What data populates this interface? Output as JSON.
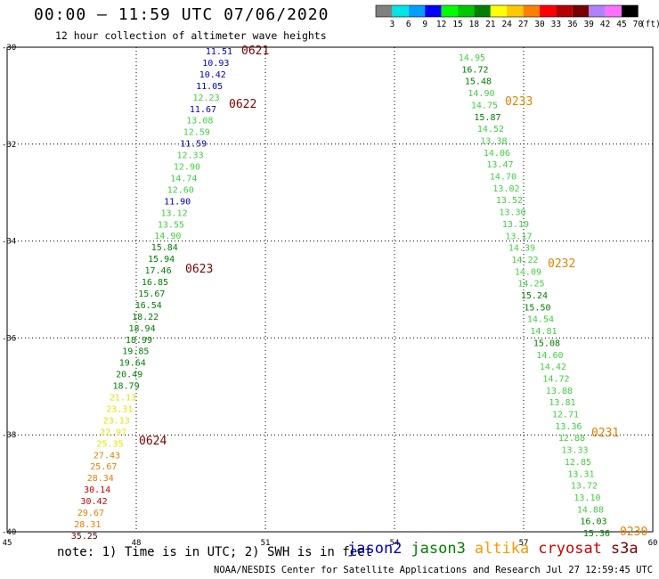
{
  "header": {
    "title": "00:00 – 11:59 UTC 07/06/2020",
    "subtitle": "12 hour collection of altimeter wave heights"
  },
  "colorbar": {
    "labels": [
      "3",
      "6",
      "9",
      "12",
      "15",
      "18",
      "21",
      "24",
      "27",
      "30",
      "33",
      "36",
      "39",
      "42",
      "45",
      "70",
      "(ft)"
    ],
    "colors": [
      "#808080",
      "#00e5e5",
      "#00a0ff",
      "#0000ff",
      "#00ff00",
      "#00c800",
      "#008000",
      "#ffff00",
      "#ffc800",
      "#ff8000",
      "#ff0000",
      "#b40000",
      "#780000",
      "#b080ff",
      "#ff70ff",
      "#000000"
    ]
  },
  "chart_data": {
    "type": "scatter",
    "xlim": [
      45,
      60
    ],
    "ylim": [
      -40,
      -30
    ],
    "x_ticks": [
      "45",
      "48",
      "51",
      "54",
      "57",
      "60"
    ],
    "y_ticks": [
      "-30",
      "-32",
      "-34",
      "-36",
      "-38",
      "-40"
    ],
    "tracks": [
      {
        "name": "left-track",
        "points": [
          [
            "11.51",
            "#0000c8"
          ],
          [
            "10.93",
            "#0000c8"
          ],
          [
            "10.42",
            "#0000c8"
          ],
          [
            "11.05",
            "#0000c8"
          ],
          [
            "12.23",
            "#40d040"
          ],
          [
            "11.67",
            "#0000c8"
          ],
          [
            "13.08",
            "#40d040"
          ],
          [
            "12.59",
            "#40d040"
          ],
          [
            "11.59",
            "#0000c8"
          ],
          [
            "12.33",
            "#40d040"
          ],
          [
            "12.90",
            "#40d040"
          ],
          [
            "14.74",
            "#40d040"
          ],
          [
            "12.60",
            "#40d040"
          ],
          [
            "11.90",
            "#0000c8"
          ],
          [
            "13.12",
            "#40d040"
          ],
          [
            "13.55",
            "#40d040"
          ],
          [
            "14.90",
            "#40d040"
          ],
          [
            "15.84",
            "#008000"
          ],
          [
            "15.94",
            "#008000"
          ],
          [
            "17.46",
            "#008000"
          ],
          [
            "16.85",
            "#008000"
          ],
          [
            "15.67",
            "#008000"
          ],
          [
            "16.54",
            "#008000"
          ],
          [
            "18.22",
            "#008000"
          ],
          [
            "18.94",
            "#008000"
          ],
          [
            "18.99",
            "#008000"
          ],
          [
            "19.85",
            "#008000"
          ],
          [
            "19.64",
            "#008000"
          ],
          [
            "20.49",
            "#008000"
          ],
          [
            "18.79",
            "#008000"
          ],
          [
            "21.13",
            "#e6e600"
          ],
          [
            "23.31",
            "#e6e600"
          ],
          [
            "23.13",
            "#e6e600"
          ],
          [
            "22.97",
            "#e6e600"
          ],
          [
            "25.35",
            "#e6e600"
          ],
          [
            "27.43",
            "#e68000"
          ],
          [
            "25.67",
            "#e68000"
          ],
          [
            "28.34",
            "#e68000"
          ],
          [
            "30.14",
            "#c80000"
          ],
          [
            "30.42",
            "#c80000"
          ],
          [
            "29.67",
            "#e68000"
          ],
          [
            "28.31",
            "#e68000"
          ],
          [
            "35.25",
            "#780000"
          ]
        ]
      },
      {
        "name": "right-track",
        "points": [
          [
            "14.95",
            "#40d040"
          ],
          [
            "16.72",
            "#008000"
          ],
          [
            "15.48",
            "#008000"
          ],
          [
            "14.90",
            "#40d040"
          ],
          [
            "14.75",
            "#40d040"
          ],
          [
            "15.87",
            "#008000"
          ],
          [
            "14.52",
            "#40d040"
          ],
          [
            "13.38",
            "#40d040"
          ],
          [
            "14.06",
            "#40d040"
          ],
          [
            "13.47",
            "#40d040"
          ],
          [
            "14.70",
            "#40d040"
          ],
          [
            "13.02",
            "#40d040"
          ],
          [
            "13.52",
            "#40d040"
          ],
          [
            "13.30",
            "#40d040"
          ],
          [
            "13.19",
            "#40d040"
          ],
          [
            "13.17",
            "#40d040"
          ],
          [
            "14.39",
            "#40d040"
          ],
          [
            "14.22",
            "#40d040"
          ],
          [
            "14.09",
            "#40d040"
          ],
          [
            "14.25",
            "#40d040"
          ],
          [
            "15.24",
            "#008000"
          ],
          [
            "15.50",
            "#008000"
          ],
          [
            "14.54",
            "#40d040"
          ],
          [
            "14.81",
            "#40d040"
          ],
          [
            "15.08",
            "#008000"
          ],
          [
            "14.60",
            "#40d040"
          ],
          [
            "14.42",
            "#40d040"
          ],
          [
            "14.72",
            "#40d040"
          ],
          [
            "13.88",
            "#40d040"
          ],
          [
            "13.81",
            "#40d040"
          ],
          [
            "12.71",
            "#40d040"
          ],
          [
            "13.36",
            "#40d040"
          ],
          [
            "12.88",
            "#40d040"
          ],
          [
            "13.33",
            "#40d040"
          ],
          [
            "12.85",
            "#40d040"
          ],
          [
            "13.31",
            "#40d040"
          ],
          [
            "13.72",
            "#40d040"
          ],
          [
            "13.10",
            "#40d040"
          ],
          [
            "14.88",
            "#40d040"
          ],
          [
            "16.03",
            "#008000"
          ],
          [
            "15.36",
            "#008000"
          ]
        ]
      }
    ],
    "time_labels": [
      {
        "text": "0621",
        "color": "#800000"
      },
      {
        "text": "0622",
        "color": "#800000"
      },
      {
        "text": "0623",
        "color": "#800000"
      },
      {
        "text": "0624",
        "color": "#800000"
      },
      {
        "text": "0233",
        "color": "#e68000"
      },
      {
        "text": "0232",
        "color": "#e68000"
      },
      {
        "text": "0231",
        "color": "#e68000"
      },
      {
        "text": "0230",
        "color": "#e68000"
      }
    ]
  },
  "footer": {
    "note": "note: 1) Time is in UTC; 2) SWH is in feet",
    "satellites": [
      {
        "name": "jason2",
        "color": "#0000c8"
      },
      {
        "name": "jason3",
        "color": "#008000"
      },
      {
        "name": "altika",
        "color": "#ff9900"
      },
      {
        "name": "cryosat",
        "color": "#d00000"
      },
      {
        "name": "s3a",
        "color": "#800000"
      }
    ],
    "credit": "NOAA/NESDIS Center for Satellite Applications and Research   Jul 27 12:59:45 UTC 2020"
  }
}
